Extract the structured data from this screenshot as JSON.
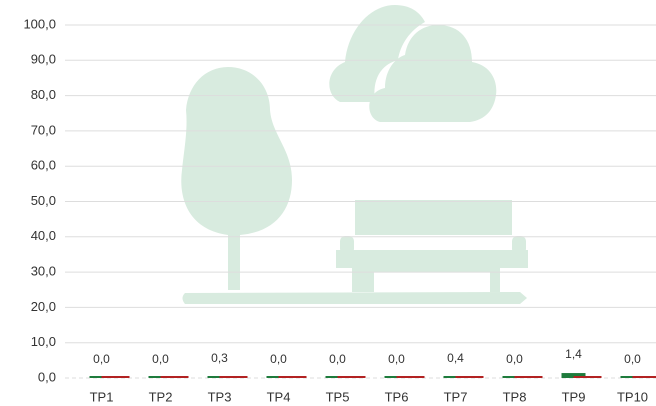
{
  "chart_data": {
    "type": "bar",
    "categories": [
      "TP1",
      "TP2",
      "TP3",
      "TP4",
      "TP5",
      "TP6",
      "TP7",
      "TP8",
      "TP9",
      "TP10"
    ],
    "series": [
      {
        "color": "#1e7b3c",
        "values": [
          0,
          0,
          0.3,
          0,
          0,
          0,
          0.4,
          0,
          1.4,
          0
        ],
        "value_labels": [
          "0,0",
          "0,0",
          "0,3",
          "0,0",
          "0,0",
          "0,0",
          "0,4",
          "0,0",
          "1,4",
          "0,0"
        ]
      },
      {
        "color": "#b22222",
        "values": [
          0,
          0,
          0,
          0,
          0,
          0,
          0,
          0,
          0,
          0
        ]
      }
    ],
    "ylim": [
      0,
      100
    ],
    "yticks": [
      {
        "value": 0,
        "label": "0,0"
      },
      {
        "value": 10,
        "label": "10,0"
      },
      {
        "value": 20,
        "label": "20,0"
      },
      {
        "value": 30,
        "label": "30,0"
      },
      {
        "value": 40,
        "label": "40,0"
      },
      {
        "value": 50,
        "label": "50,0"
      },
      {
        "value": 60,
        "label": "60,0"
      },
      {
        "value": 70,
        "label": "70,0"
      },
      {
        "value": 80,
        "label": "80,0"
      },
      {
        "value": 90,
        "label": "90,0"
      },
      {
        "value": 100,
        "label": "100,0"
      }
    ],
    "grid": true
  }
}
